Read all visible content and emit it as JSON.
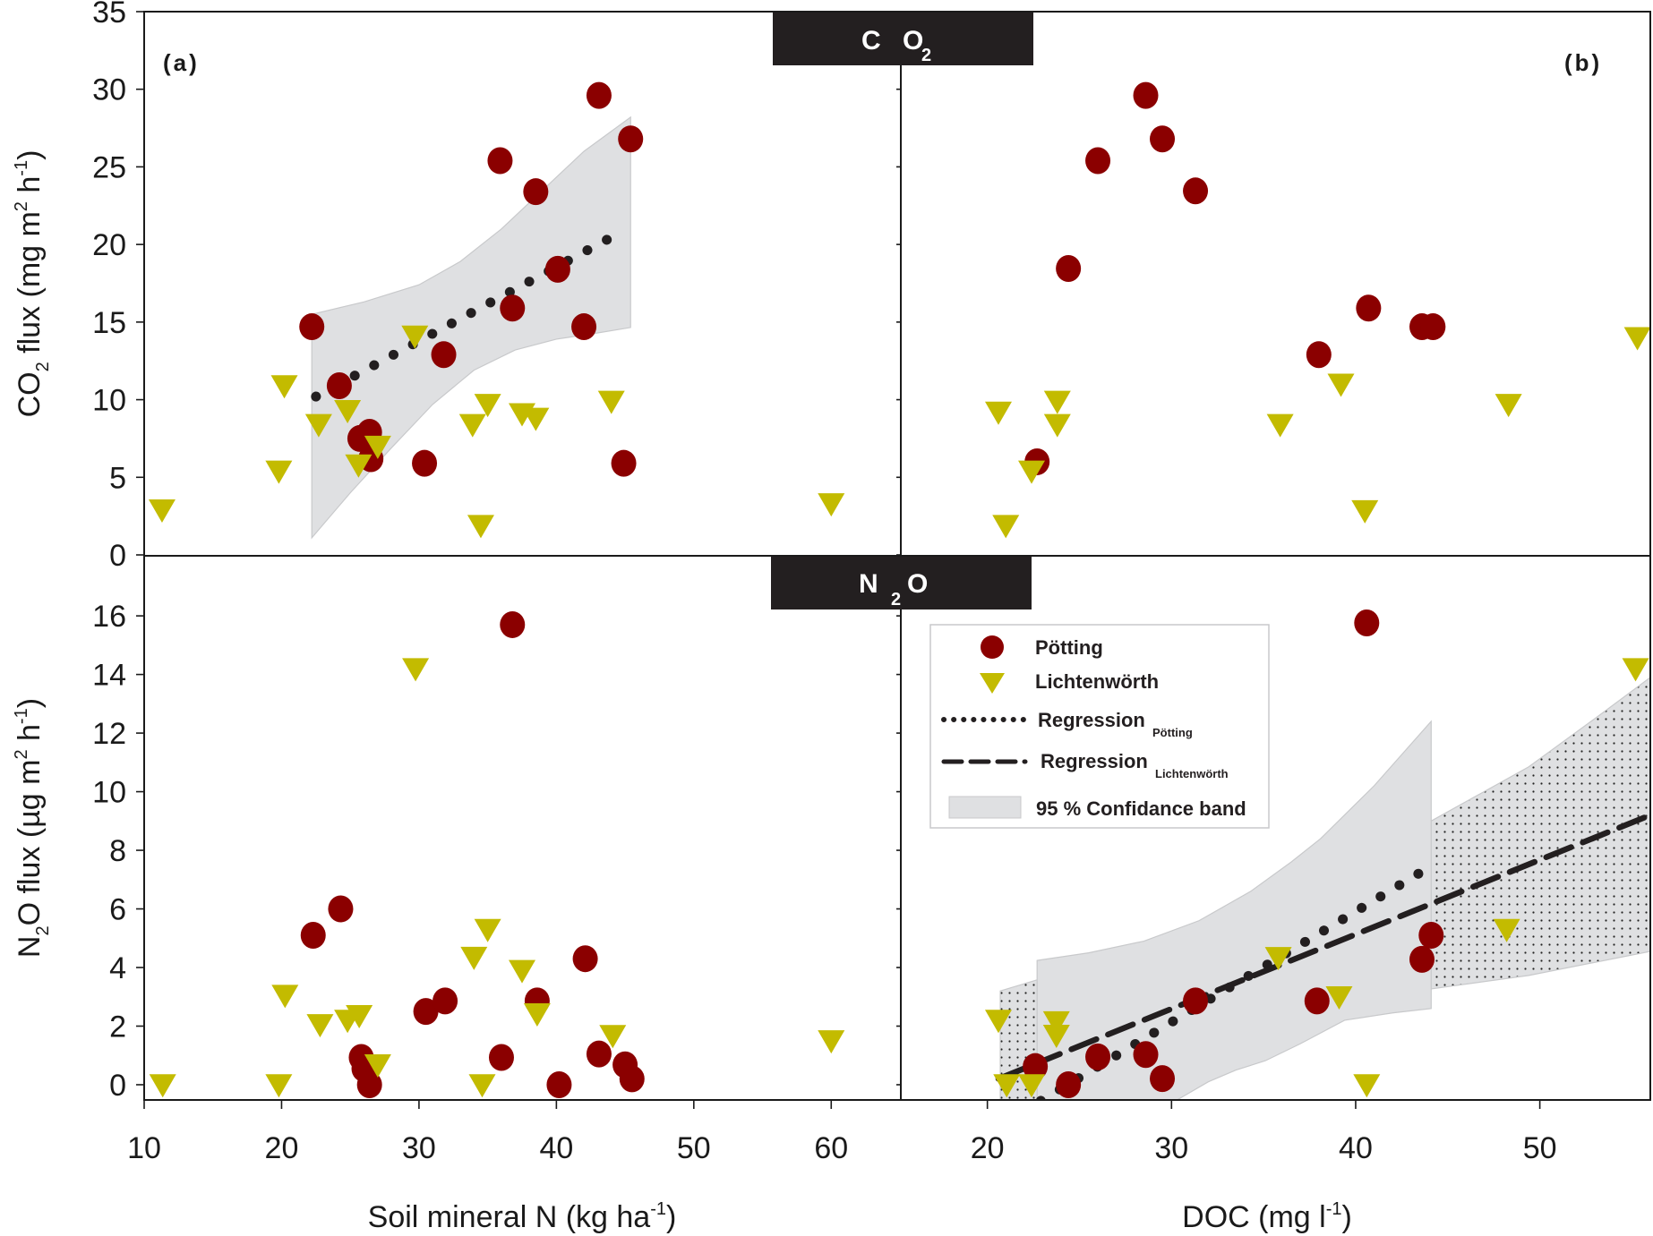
{
  "colors": {
    "potting": "#8b0000",
    "lichtenworth": "#c3bb00",
    "band": "#dfe0e2",
    "regression": "#231f20",
    "gas_box": "#231f20"
  },
  "chart_data": [
    {
      "id": "a-co2",
      "type": "scatter",
      "panel_label": "(a)",
      "gas_label": {
        "main": "CO",
        "sub": "2"
      },
      "xlabel": "Soil mineral N (kg ha-1)",
      "ylabel": "CO2 flux (mg m2 h-1)",
      "xlim": [
        10,
        65
      ],
      "ylim": [
        0,
        35
      ],
      "xticks": [
        10,
        20,
        30,
        40,
        50,
        60
      ],
      "yticks": [
        0,
        5,
        10,
        15,
        20,
        25,
        30,
        35
      ],
      "series": [
        {
          "name": "Pötting",
          "marker": "circle",
          "points": [
            [
              22.2,
              14.7
            ],
            [
              24.2,
              10.9
            ],
            [
              25.7,
              7.5
            ],
            [
              26.4,
              7.9
            ],
            [
              26.5,
              6.2
            ],
            [
              30.4,
              5.9
            ],
            [
              31.8,
              12.9
            ],
            [
              35.9,
              25.4
            ],
            [
              36.8,
              15.9
            ],
            [
              38.5,
              23.4
            ],
            [
              40.1,
              18.4
            ],
            [
              42.0,
              14.7
            ],
            [
              43.1,
              29.6
            ],
            [
              45.4,
              26.8
            ],
            [
              44.9,
              5.9
            ]
          ]
        },
        {
          "name": "Lichtenwörth",
          "marker": "triangle-down",
          "points": [
            [
              11.3,
              2.9
            ],
            [
              19.8,
              5.4
            ],
            [
              20.2,
              10.9
            ],
            [
              22.7,
              8.4
            ],
            [
              24.8,
              9.3
            ],
            [
              25.6,
              5.8
            ],
            [
              27.0,
              7.0
            ],
            [
              29.7,
              14.1
            ],
            [
              33.9,
              8.4
            ],
            [
              34.5,
              1.9
            ],
            [
              35.0,
              9.7
            ],
            [
              37.5,
              9.1
            ],
            [
              38.5,
              8.8
            ],
            [
              44.0,
              9.9
            ],
            [
              60.0,
              3.3
            ]
          ]
        }
      ],
      "regressions": [
        {
          "name": "Regression Pötting",
          "style": "dotted",
          "from": [
            22.5,
            10.2
          ],
          "to": [
            44.5,
            20.7
          ]
        }
      ],
      "bands": [
        {
          "name": "95 % Confidance band Pötting",
          "style": "solid",
          "upper": [
            [
              22.2,
              15.5
            ],
            [
              26,
              16.3
            ],
            [
              30,
              17.4
            ],
            [
              33,
              18.9
            ],
            [
              36,
              21.0
            ],
            [
              39,
              23.5
            ],
            [
              42,
              26.0
            ],
            [
              45.4,
              28.2
            ]
          ],
          "lower": [
            [
              22.2,
              1.1
            ],
            [
              25,
              4.0
            ],
            [
              28,
              6.9
            ],
            [
              31,
              9.7
            ],
            [
              34,
              11.9
            ],
            [
              37,
              13.2
            ],
            [
              40,
              13.9
            ],
            [
              43,
              14.3
            ],
            [
              45.4,
              14.65
            ]
          ]
        }
      ]
    },
    {
      "id": "b-co2",
      "type": "scatter",
      "panel_label": "(b)",
      "xlabel": "DOC (mg l-1)",
      "xlim": [
        15.3,
        56
      ],
      "ylim": [
        0,
        35
      ],
      "xticks": [
        20,
        30,
        40,
        50
      ],
      "series": [
        {
          "name": "Pötting",
          "marker": "circle",
          "points": [
            [
              22.7,
              6.0
            ],
            [
              24.4,
              18.45
            ],
            [
              26.0,
              25.4
            ],
            [
              28.6,
              29.6
            ],
            [
              29.5,
              26.8
            ],
            [
              31.3,
              23.45
            ],
            [
              38.0,
              12.9
            ],
            [
              40.7,
              15.9
            ],
            [
              43.6,
              14.7
            ],
            [
              44.2,
              14.7
            ]
          ]
        },
        {
          "name": "Lichtenwörth",
          "marker": "triangle-down",
          "points": [
            [
              20.6,
              9.2
            ],
            [
              21.0,
              1.9
            ],
            [
              22.4,
              5.4
            ],
            [
              23.8,
              9.9
            ],
            [
              23.8,
              8.4
            ],
            [
              35.9,
              8.4
            ],
            [
              39.2,
              11.0
            ],
            [
              40.5,
              2.85
            ],
            [
              48.3,
              9.7
            ],
            [
              55.3,
              14.0
            ]
          ]
        }
      ],
      "regressions": [],
      "bands": []
    },
    {
      "id": "a-n2o",
      "type": "scatter",
      "gas_label": {
        "main": "N",
        "sub": "2",
        "tail": "O"
      },
      "xlabel": "Soil mineral N (kg ha-1)",
      "ylabel": "N2O flux (µg m2 h-1)",
      "xlim": [
        10,
        65
      ],
      "ylim": [
        -0.52,
        18.05
      ],
      "xticks": [
        10,
        20,
        30,
        40,
        50,
        60
      ],
      "yticks": [
        0,
        2,
        4,
        6,
        8,
        10,
        12,
        14,
        16
      ],
      "series": [
        {
          "name": "Pötting",
          "marker": "circle",
          "points": [
            [
              22.3,
              5.1
            ],
            [
              24.3,
              6.0
            ],
            [
              25.8,
              0.93
            ],
            [
              26.0,
              0.55
            ],
            [
              26.4,
              0.0
            ],
            [
              30.5,
              2.5
            ],
            [
              31.9,
              2.86
            ],
            [
              36.0,
              0.93
            ],
            [
              36.8,
              15.7
            ],
            [
              38.6,
              2.86
            ],
            [
              40.2,
              0.0
            ],
            [
              42.1,
              4.3
            ],
            [
              43.1,
              1.05
            ],
            [
              45.0,
              0.68
            ],
            [
              45.5,
              0.2
            ]
          ]
        },
        {
          "name": "Lichtenwörth",
          "marker": "triangle-down",
          "points": [
            [
              11.35,
              0.0
            ],
            [
              19.8,
              0.0
            ],
            [
              20.25,
              3.05
            ],
            [
              22.8,
              2.05
            ],
            [
              24.8,
              2.2
            ],
            [
              25.65,
              2.36
            ],
            [
              27.0,
              0.68
            ],
            [
              29.75,
              14.2
            ],
            [
              34.0,
              4.35
            ],
            [
              34.6,
              0.0
            ],
            [
              35.0,
              5.3
            ],
            [
              37.5,
              3.9
            ],
            [
              38.6,
              2.42
            ],
            [
              44.1,
              1.68
            ],
            [
              60.0,
              1.5
            ]
          ]
        }
      ],
      "regressions": [],
      "bands": []
    },
    {
      "id": "b-n2o",
      "type": "scatter",
      "xlabel": "DOC (mg l-1)",
      "xlim": [
        15.3,
        56
      ],
      "ylim": [
        -0.52,
        18.05
      ],
      "xticks": [
        20,
        30,
        40,
        50
      ],
      "series": [
        {
          "name": "Pötting",
          "marker": "circle",
          "points": [
            [
              22.6,
              0.62
            ],
            [
              24.4,
              0.0
            ],
            [
              26.0,
              0.95
            ],
            [
              28.6,
              1.03
            ],
            [
              29.5,
              0.21
            ],
            [
              31.3,
              2.86
            ],
            [
              37.9,
              2.86
            ],
            [
              40.6,
              15.76
            ],
            [
              43.6,
              4.28
            ],
            [
              44.1,
              5.1
            ]
          ]
        },
        {
          "name": "Lichtenwörth",
          "marker": "triangle-down",
          "points": [
            [
              20.6,
              2.2
            ],
            [
              21.05,
              0.0
            ],
            [
              22.4,
              0.0
            ],
            [
              23.75,
              2.15
            ],
            [
              23.75,
              1.69
            ],
            [
              35.8,
              4.34
            ],
            [
              39.1,
              3.0
            ],
            [
              40.6,
              0.0
            ],
            [
              48.2,
              5.3
            ],
            [
              55.2,
              14.2
            ]
          ]
        }
      ],
      "regressions": [
        {
          "name": "Regression Pötting",
          "style": "dotted",
          "from": [
            22.9,
            -0.55
          ],
          "to": [
            44.2,
            7.5
          ]
        },
        {
          "name": "Regression Lichtenwörth",
          "style": "dashed",
          "from": [
            20.6,
            0.2
          ],
          "to": [
            56.0,
            9.2
          ]
        }
      ],
      "bands": [
        {
          "name": "95 % Confidance band Lichtenwörth",
          "style": "dotted",
          "upper": [
            [
              20.7,
              3.2
            ],
            [
              26,
              4.2
            ],
            [
              32,
              5.7
            ],
            [
              38,
              7.2
            ],
            [
              44.1,
              9.0
            ],
            [
              49.4,
              10.85
            ],
            [
              53,
              12.5
            ],
            [
              56,
              13.9
            ]
          ],
          "lower": [
            [
              20.7,
              -0.52
            ],
            [
              26,
              -0.52
            ],
            [
              30,
              0.6
            ],
            [
              35,
              1.7
            ],
            [
              40,
              2.6
            ],
            [
              44.1,
              3.27
            ],
            [
              49.4,
              3.73
            ],
            [
              56,
              4.55
            ]
          ]
        },
        {
          "name": "95 % Confidance band Pötting",
          "style": "solid",
          "upper": [
            [
              22.7,
              4.24
            ],
            [
              25.5,
              4.5
            ],
            [
              28.5,
              4.9
            ],
            [
              31.5,
              5.6
            ],
            [
              34.3,
              6.6
            ],
            [
              36.5,
              7.6
            ],
            [
              38.1,
              8.4
            ],
            [
              41,
              10.2
            ],
            [
              44.1,
              12.4
            ]
          ],
          "lower": [
            [
              22.7,
              -0.52
            ],
            [
              30.3,
              -0.52
            ],
            [
              32,
              0.1
            ],
            [
              33.5,
              0.5
            ],
            [
              35.1,
              0.82
            ],
            [
              37,
              1.4
            ],
            [
              39.4,
              2.2
            ],
            [
              42,
              2.45
            ],
            [
              44.1,
              2.6
            ]
          ]
        }
      ]
    }
  ],
  "figure": {
    "y_top_title": {
      "pre": "CO",
      "sub": "2",
      "mid": " flux (mg m",
      "sup1": "2",
      "mid2": " h",
      "sup2": "-1",
      "post": ")"
    },
    "y_bottom_title": {
      "pre": "N",
      "sub": "2",
      "mid": "O flux (µg m",
      "sup1": "2",
      "mid2": " h",
      "sup2": "-1",
      "post": ")"
    },
    "x_left_title": {
      "pre": "Soil mineral N (kg ha",
      "sup": "-1",
      "post": ")"
    },
    "x_right_title": {
      "pre": "DOC (mg l",
      "sup": "-1",
      "post": ")"
    },
    "panel_a": "(a)",
    "panel_b": "(b)",
    "gas_co2": {
      "main": "C O",
      "sub": "2"
    },
    "gas_n2o": {
      "main": "N",
      "sub": "2",
      "tail": "O"
    }
  },
  "legend": {
    "items": [
      {
        "label": "Pötting",
        "sub": "",
        "symbol": "circle"
      },
      {
        "label": "Lichtenwörth",
        "sub": "",
        "symbol": "triangle-down"
      },
      {
        "label": "Regression",
        "sub": "Pötting",
        "symbol": "dotted-line"
      },
      {
        "label": "Regression",
        "sub": "Lichtenwörth",
        "symbol": "dashed-line"
      },
      {
        "label": "95 % Confidance band",
        "sub": "",
        "symbol": "gray-box"
      }
    ]
  }
}
